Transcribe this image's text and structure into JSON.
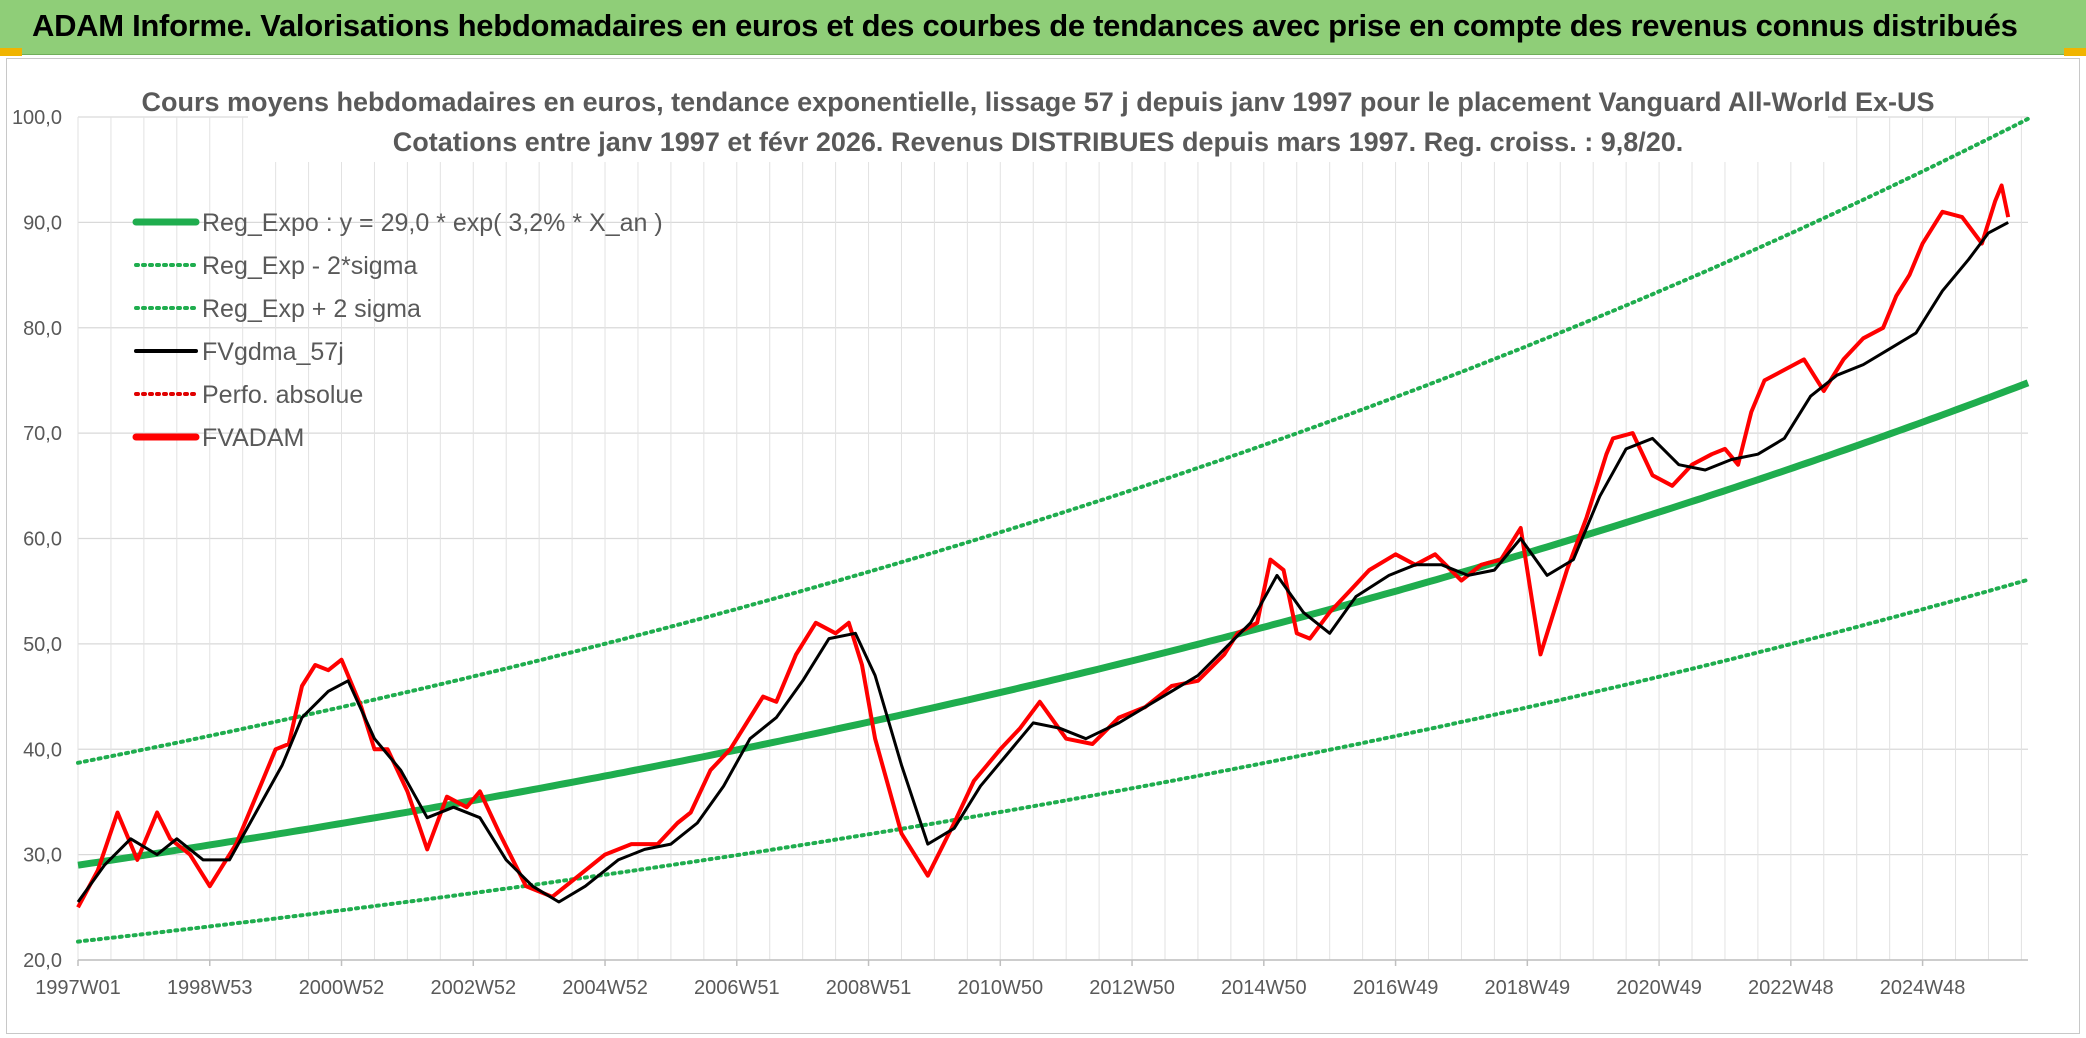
{
  "header": {
    "title": "ADAM Informe. Valorisations hebdomadaires en euros et des courbes de tendances avec prise en compte des revenus connus distribués"
  },
  "chart_data": {
    "type": "line",
    "title_line1": "Cours moyens hebdomadaires en euros, tendance exponentielle, lissage 57 j depuis janv 1997 pour le placement Vanguard All-World Ex-US",
    "title_line2": "Cotations entre janv 1997 et févr 2026. Revenus DISTRIBUES depuis mars 1997. Reg. croiss. : 9,8/20.",
    "x_range": [
      1997.0,
      2026.6
    ],
    "ylim": [
      20,
      100
    ],
    "y_ticks": [
      "20,0",
      "30,0",
      "40,0",
      "50,0",
      "60,0",
      "70,0",
      "80,0",
      "90,0",
      "100,0"
    ],
    "x_tick_labels": [
      "1997W01",
      "1998W53",
      "2000W52",
      "2002W52",
      "2004W52",
      "2006W51",
      "2008W51",
      "2010W50",
      "2012W50",
      "2014W50",
      "2016W49",
      "2018W49",
      "2020W49",
      "2022W48",
      "2024W48"
    ],
    "x_tick_years": [
      1997.0,
      1999.0,
      2001.0,
      2003.0,
      2005.0,
      2007.0,
      2009.0,
      2011.0,
      2013.0,
      2015.0,
      2017.0,
      2019.0,
      2021.0,
      2023.0,
      2025.0
    ],
    "regression": {
      "a": 29.0,
      "rate": 0.032,
      "lower_sigma_factor": 0.75,
      "upper_sigma_factor": 1.335
    },
    "legend": [
      {
        "label": "Reg_Expo : y = 29,0 * exp( 3,2% *  X_an )",
        "color": "#1fad4e",
        "style": "solid-thick"
      },
      {
        "label": "Reg_Exp - 2*sigma",
        "color": "#1fad4e",
        "style": "dotted"
      },
      {
        "label": "Reg_Exp + 2 sigma",
        "color": "#1fad4e",
        "style": "dotted"
      },
      {
        "label": "FVgdma_57j",
        "color": "#000000",
        "style": "solid"
      },
      {
        "label": "Perfo. absolue",
        "color": "#e00000",
        "style": "dotted"
      },
      {
        "label": "FVADAM",
        "color": "#ff0000",
        "style": "solid-thick"
      }
    ],
    "series_fvadam": {
      "name": "FVADAM",
      "x": [
        1997.0,
        1997.3,
        1997.6,
        1997.9,
        1998.2,
        1998.4,
        1998.7,
        1999.0,
        1999.4,
        1999.8,
        2000.0,
        2000.2,
        2000.4,
        2000.6,
        2000.8,
        2001.0,
        2001.3,
        2001.5,
        2001.7,
        2002.0,
        2002.3,
        2002.6,
        2002.9,
        2003.1,
        2003.4,
        2003.8,
        2004.2,
        2004.6,
        2005.0,
        2005.4,
        2005.8,
        2006.1,
        2006.3,
        2006.6,
        2006.9,
        2007.2,
        2007.4,
        2007.6,
        2007.9,
        2008.2,
        2008.5,
        2008.7,
        2008.9,
        2009.1,
        2009.5,
        2009.9,
        2010.3,
        2010.6,
        2010.8,
        2011.0,
        2011.3,
        2011.6,
        2012.0,
        2012.4,
        2012.8,
        2013.2,
        2013.6,
        2014.0,
        2014.4,
        2014.6,
        2014.9,
        2015.1,
        2015.3,
        2015.5,
        2015.7,
        2016.0,
        2016.3,
        2016.6,
        2017.0,
        2017.3,
        2017.6,
        2018.0,
        2018.3,
        2018.6,
        2018.9,
        2019.2,
        2019.6,
        2019.9,
        2020.1,
        2020.2,
        2020.3,
        2020.6,
        2020.9,
        2021.2,
        2021.5,
        2021.8,
        2022.0,
        2022.2,
        2022.4,
        2022.6,
        2022.9,
        2023.2,
        2023.5,
        2023.8,
        2024.1,
        2024.4,
        2024.6,
        2024.8,
        2025.0,
        2025.3,
        2025.6,
        2025.9,
        2026.0,
        2026.1,
        2026.2,
        2026.3
      ],
      "values": [
        25.0,
        28.5,
        34.0,
        29.5,
        34.0,
        31.5,
        30.0,
        27.0,
        31.0,
        37.0,
        40.0,
        40.5,
        46.0,
        48.0,
        47.5,
        48.5,
        44.0,
        40.0,
        40.0,
        36.0,
        30.5,
        35.5,
        34.5,
        36.0,
        32.0,
        27.0,
        26.0,
        28.0,
        30.0,
        31.0,
        31.0,
        33.0,
        34.0,
        38.0,
        40.0,
        43.0,
        45.0,
        44.5,
        49.0,
        52.0,
        51.0,
        52.0,
        48.0,
        41.0,
        32.0,
        28.0,
        33.0,
        37.0,
        38.5,
        40.0,
        42.0,
        44.5,
        41.0,
        40.5,
        43.0,
        44.0,
        46.0,
        46.5,
        49.0,
        51.0,
        52.0,
        58.0,
        57.0,
        51.0,
        50.5,
        53.0,
        55.0,
        57.0,
        58.5,
        57.5,
        58.5,
        56.0,
        57.5,
        58.0,
        61.0,
        49.0,
        57.0,
        62.0,
        66.0,
        68.0,
        69.5,
        70.0,
        66.0,
        65.0,
        67.0,
        68.0,
        68.5,
        67.0,
        72.0,
        75.0,
        76.0,
        77.0,
        74.0,
        77.0,
        79.0,
        80.0,
        83.0,
        85.0,
        88.0,
        91.0,
        90.5,
        88.0,
        90.0,
        92.0,
        93.5,
        90.5
      ]
    },
    "series_fvgdma_57j": {
      "name": "FVgdma_57j",
      "x": [
        1997.0,
        1997.4,
        1997.8,
        1998.2,
        1998.5,
        1998.9,
        1999.3,
        1999.7,
        2000.1,
        2000.4,
        2000.8,
        2001.1,
        2001.5,
        2001.9,
        2002.3,
        2002.7,
        2003.1,
        2003.5,
        2003.9,
        2004.3,
        2004.7,
        2005.2,
        2005.6,
        2006.0,
        2006.4,
        2006.8,
        2007.2,
        2007.6,
        2008.0,
        2008.4,
        2008.8,
        2009.1,
        2009.5,
        2009.9,
        2010.3,
        2010.7,
        2011.1,
        2011.5,
        2011.9,
        2012.3,
        2012.8,
        2013.2,
        2013.6,
        2014.0,
        2014.4,
        2014.8,
        2015.2,
        2015.6,
        2016.0,
        2016.4,
        2016.9,
        2017.3,
        2017.7,
        2018.1,
        2018.5,
        2018.9,
        2019.3,
        2019.7,
        2020.1,
        2020.5,
        2020.9,
        2021.3,
        2021.7,
        2022.1,
        2022.5,
        2022.9,
        2023.3,
        2023.7,
        2024.1,
        2024.5,
        2024.9,
        2025.3,
        2025.7,
        2026.0,
        2026.3
      ],
      "values": [
        25.5,
        29.0,
        31.5,
        30.0,
        31.5,
        29.5,
        29.5,
        34.0,
        38.5,
        43.0,
        45.5,
        46.5,
        41.0,
        38.0,
        33.5,
        34.5,
        33.5,
        29.5,
        27.0,
        25.5,
        27.0,
        29.5,
        30.5,
        31.0,
        33.0,
        36.5,
        41.0,
        43.0,
        46.5,
        50.5,
        51.0,
        47.0,
        38.5,
        31.0,
        32.5,
        36.5,
        39.5,
        42.5,
        42.0,
        41.0,
        42.5,
        44.0,
        45.5,
        47.0,
        49.5,
        52.0,
        56.5,
        53.0,
        51.0,
        54.5,
        56.5,
        57.5,
        57.5,
        56.5,
        57.0,
        60.0,
        56.5,
        58.0,
        64.0,
        68.5,
        69.5,
        67.0,
        66.5,
        67.5,
        68.0,
        69.5,
        73.5,
        75.5,
        76.5,
        78.0,
        79.5,
        83.5,
        86.5,
        89.0,
        90.0
      ]
    }
  }
}
